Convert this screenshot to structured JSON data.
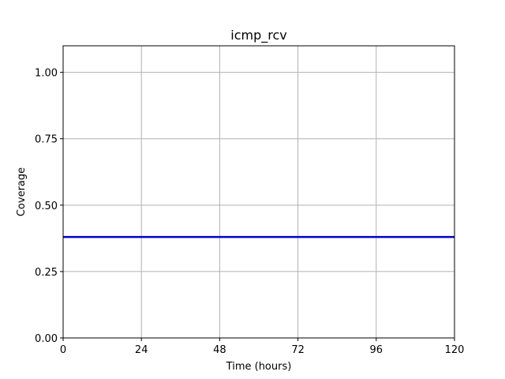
{
  "chart_data": {
    "type": "line",
    "title": "icmp_rcv",
    "xlabel": "Time (hours)",
    "ylabel": "Coverage",
    "xlim": [
      0,
      120
    ],
    "ylim": [
      0,
      1.1
    ],
    "xticks": [
      0,
      24,
      48,
      72,
      96,
      120
    ],
    "yticks": [
      0.0,
      0.25,
      0.5,
      0.75,
      1.0
    ],
    "xtick_labels": [
      "0",
      "24",
      "48",
      "72",
      "96",
      "120"
    ],
    "ytick_labels": [
      "0.00",
      "0.25",
      "0.50",
      "0.75",
      "1.00"
    ],
    "grid": true,
    "series": [
      {
        "color": "#0000cc",
        "x": [
          0,
          120
        ],
        "y": [
          0.38,
          0.38
        ]
      }
    ]
  }
}
